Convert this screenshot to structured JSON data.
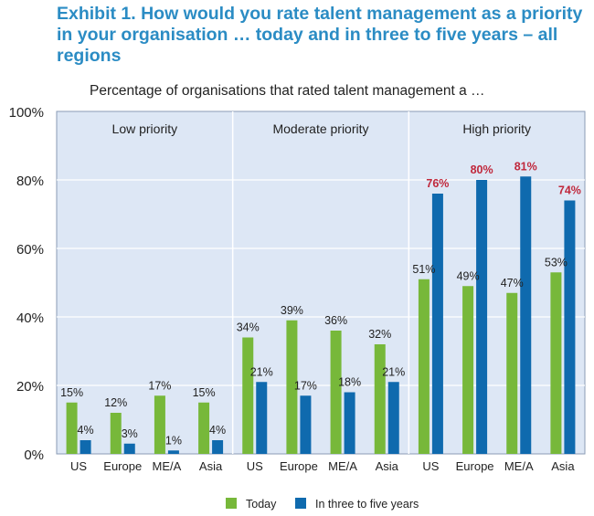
{
  "chart_data": {
    "type": "bar",
    "title": "Exhibit 1. How would you rate talent management as a priority in your organisation … today and in three to five years – all regions",
    "subtitle": "Percentage of organisations that rated talent management a …",
    "groups": [
      "Low priority",
      "Moderate priority",
      "High priority"
    ],
    "categories": [
      "US",
      "Europe",
      "ME/A",
      "Asia",
      "US",
      "Europe",
      "ME/A",
      "Asia",
      "US",
      "Europe",
      "ME/A",
      "Asia"
    ],
    "series": [
      {
        "name": "Today",
        "color": "#77b83a",
        "values": [
          15,
          12,
          17,
          15,
          34,
          39,
          36,
          32,
          51,
          49,
          47,
          53
        ],
        "labels": [
          "15%",
          "12%",
          "17%",
          "15%",
          "34%",
          "39%",
          "36%",
          "32%",
          "51%",
          "49%",
          "47%",
          "53%"
        ]
      },
      {
        "name": "In three to five years",
        "color": "#0f6aae",
        "values": [
          4,
          3,
          1,
          4,
          21,
          17,
          18,
          21,
          76,
          80,
          81,
          74
        ],
        "labels": [
          "4%",
          "3%",
          "1%",
          "4%",
          "21%",
          "17%",
          "18%",
          "21%",
          "76%",
          "80%",
          "81%",
          "74%"
        ]
      }
    ],
    "highlight_color": "#c0283c",
    "highlight_group": 2,
    "ylim": [
      0,
      100
    ],
    "yticks": [
      "0%",
      "20%",
      "40%",
      "60%",
      "80%",
      "100%"
    ],
    "ytick_values": [
      0,
      20,
      40,
      60,
      80,
      100
    ],
    "plot_background": "#dde7f5",
    "grid": true,
    "legend_position": "bottom"
  }
}
